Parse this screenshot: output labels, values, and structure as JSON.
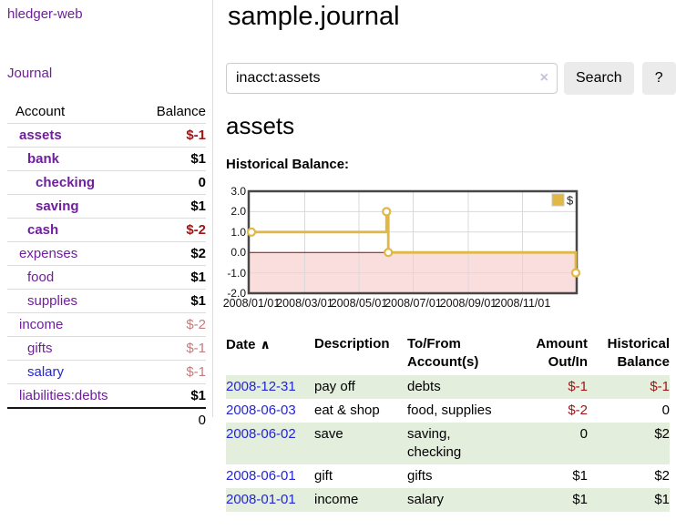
{
  "app": {
    "brand": "hledger-web",
    "nav": {
      "journal": "Journal"
    }
  },
  "sidebar": {
    "header": {
      "account": "Account",
      "balance": "Balance"
    },
    "accounts": [
      {
        "name": "assets",
        "depth": 1,
        "in_query": true,
        "balance": "$-1",
        "balance_style": "neg-strong"
      },
      {
        "name": "bank",
        "depth": 2,
        "in_query": true,
        "balance": "$1",
        "balance_style": "pos"
      },
      {
        "name": "checking",
        "depth": 3,
        "in_query": true,
        "balance": "0",
        "balance_style": "pos"
      },
      {
        "name": "saving",
        "depth": 3,
        "in_query": true,
        "balance": "$1",
        "balance_style": "pos"
      },
      {
        "name": "cash",
        "depth": 2,
        "in_query": true,
        "balance": "$-2",
        "balance_style": "neg-strong"
      },
      {
        "name": "expenses",
        "depth": 1,
        "in_query": false,
        "balance": "$2",
        "balance_style": "pos"
      },
      {
        "name": "food",
        "depth": 2,
        "in_query": false,
        "balance": "$1",
        "balance_style": "pos"
      },
      {
        "name": "supplies",
        "depth": 2,
        "in_query": false,
        "balance": "$1",
        "balance_style": "pos"
      },
      {
        "name": "income",
        "depth": 1,
        "in_query": false,
        "balance": "$-2",
        "balance_style": "neg-soft"
      },
      {
        "name": "gifts",
        "depth": 2,
        "in_query": false,
        "balance": "$-1",
        "balance_style": "neg-soft"
      },
      {
        "name": "salary",
        "depth": 2,
        "in_query": false,
        "balance": "$-1",
        "balance_style": "neg-soft",
        "link_variant": "blue"
      },
      {
        "name": "liabilities:debts",
        "depth": 1,
        "in_query": false,
        "balance": "$1",
        "balance_style": "pos"
      }
    ],
    "total": "0"
  },
  "main": {
    "title": "sample.journal",
    "search": {
      "value": "inacct:assets",
      "clear_icon": "×",
      "search_button": "Search",
      "help_button": "?"
    },
    "account_heading": "assets",
    "chart_heading": "Historical Balance:"
  },
  "chart_data": {
    "type": "line",
    "step": true,
    "title": "Historical Balance:",
    "series": [
      {
        "name": "$",
        "points": [
          {
            "x": "2008/01/01",
            "y": 1.0
          },
          {
            "x": "2008/06/01",
            "y": 2.0
          },
          {
            "x": "2008/06/03",
            "y": 0.0
          },
          {
            "x": "2008/12/31",
            "y": -1.0
          }
        ]
      }
    ],
    "x_domain": [
      "2008/01/01",
      "2008/12/31"
    ],
    "x_ticks": [
      "2008/01/01",
      "2008/03/01",
      "2008/05/01",
      "2008/07/01",
      "2008/09/01",
      "2008/11/01"
    ],
    "y_ticks": [
      3.0,
      2.0,
      1.0,
      0.0,
      -1.0,
      -2.0
    ],
    "ylim": [
      -2.0,
      3.0
    ],
    "legend": {
      "position": "top-right",
      "entries": [
        "$"
      ]
    },
    "grid": true,
    "negative_region_shaded": true,
    "colors": {
      "series": "#dfb845",
      "negative_fill": "#fadede",
      "zero_line": "#8b0b00"
    }
  },
  "register": {
    "header": {
      "date": "Date",
      "sort_icon": "∧",
      "description": "Description",
      "tofrom": "To/From Account(s)",
      "amount": "Amount Out/In",
      "balance": "Historical Balance"
    },
    "rows": [
      {
        "date": "2008-12-31",
        "description": "pay off",
        "accounts": "debts",
        "amount": "$-1",
        "amount_negative": true,
        "balance": "$-1",
        "balance_negative": true
      },
      {
        "date": "2008-06-03",
        "description": "eat & shop",
        "accounts": "food, supplies",
        "amount": "$-2",
        "amount_negative": true,
        "balance": "0",
        "balance_negative": false
      },
      {
        "date": "2008-06-02",
        "description": "save",
        "accounts": "saving, checking",
        "amount": "0",
        "amount_negative": false,
        "balance": "$2",
        "balance_negative": false
      },
      {
        "date": "2008-06-01",
        "description": "gift",
        "accounts": "gifts",
        "amount": "$1",
        "amount_negative": false,
        "balance": "$2",
        "balance_negative": false
      },
      {
        "date": "2008-01-01",
        "description": "income",
        "accounts": "salary",
        "amount": "$1",
        "amount_negative": false,
        "balance": "$1",
        "balance_negative": false
      }
    ]
  }
}
